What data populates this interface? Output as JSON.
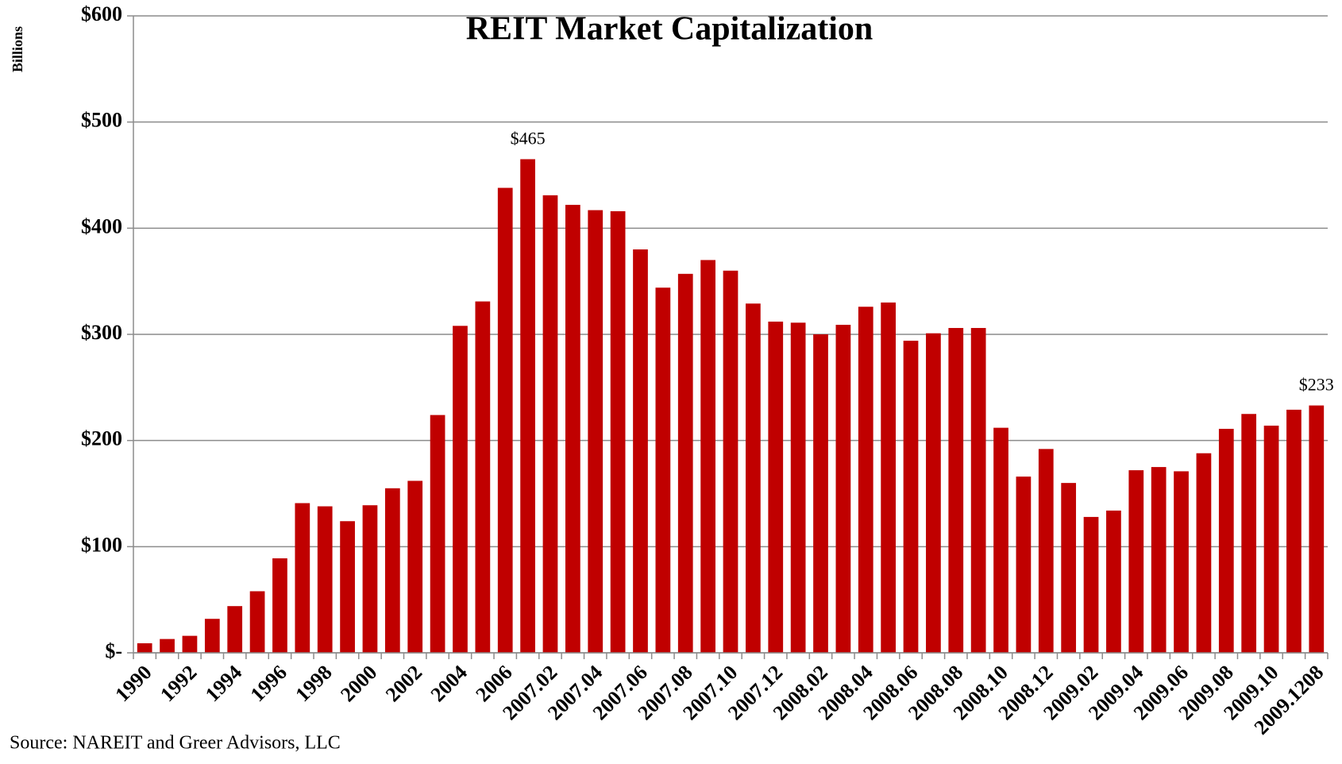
{
  "chart_data": {
    "type": "bar",
    "title": "REIT Market Capitalization",
    "y_label": "Billions",
    "source": "Source: NAREIT and Greer Advisors, LLC",
    "categories": [
      "1990",
      null,
      "1992",
      null,
      "1994",
      null,
      "1996",
      null,
      "1998",
      null,
      "2000",
      null,
      "2002",
      null,
      "2004",
      null,
      "2006",
      null,
      "2007.02",
      null,
      "2007.04",
      null,
      "2007.06",
      null,
      "2007.08",
      null,
      "2007.10",
      null,
      "2007.12",
      null,
      "2008.02",
      null,
      "2008.04",
      null,
      "2008.06",
      null,
      "2008.08",
      null,
      "2008.10",
      null,
      "2008.12",
      null,
      "2009.02",
      null,
      "2009.04",
      null,
      "2009.06",
      null,
      "2009.08",
      null,
      "2009.10",
      null,
      "2009.1208"
    ],
    "values": [
      9,
      13,
      16,
      32,
      44,
      58,
      89,
      141,
      138,
      124,
      139,
      155,
      162,
      224,
      308,
      331,
      438,
      465,
      431,
      422,
      417,
      416,
      380,
      344,
      357,
      370,
      360,
      329,
      312,
      311,
      300,
      309,
      326,
      330,
      294,
      301,
      306,
      306,
      212,
      166,
      192,
      160,
      128,
      134,
      172,
      175,
      171,
      188,
      211,
      225,
      214,
      229,
      233
    ],
    "value_labels": [
      null,
      null,
      null,
      null,
      null,
      null,
      null,
      null,
      null,
      null,
      null,
      null,
      null,
      null,
      null,
      null,
      null,
      "$465",
      null,
      null,
      null,
      null,
      null,
      null,
      null,
      null,
      null,
      null,
      null,
      null,
      null,
      null,
      null,
      null,
      null,
      null,
      null,
      null,
      null,
      null,
      null,
      null,
      null,
      null,
      null,
      null,
      null,
      null,
      null,
      null,
      null,
      null,
      "$233"
    ],
    "color": "#c00000",
    "ylim": [
      0,
      600
    ],
    "yticks": [
      {
        "value": 0,
        "label": "$-"
      },
      {
        "value": 100,
        "label": "$100"
      },
      {
        "value": 200,
        "label": "$200"
      },
      {
        "value": 300,
        "label": "$300"
      },
      {
        "value": 400,
        "label": "$400"
      },
      {
        "value": 500,
        "label": "$500"
      },
      {
        "value": 600,
        "label": "$600"
      }
    ],
    "grid": true
  }
}
